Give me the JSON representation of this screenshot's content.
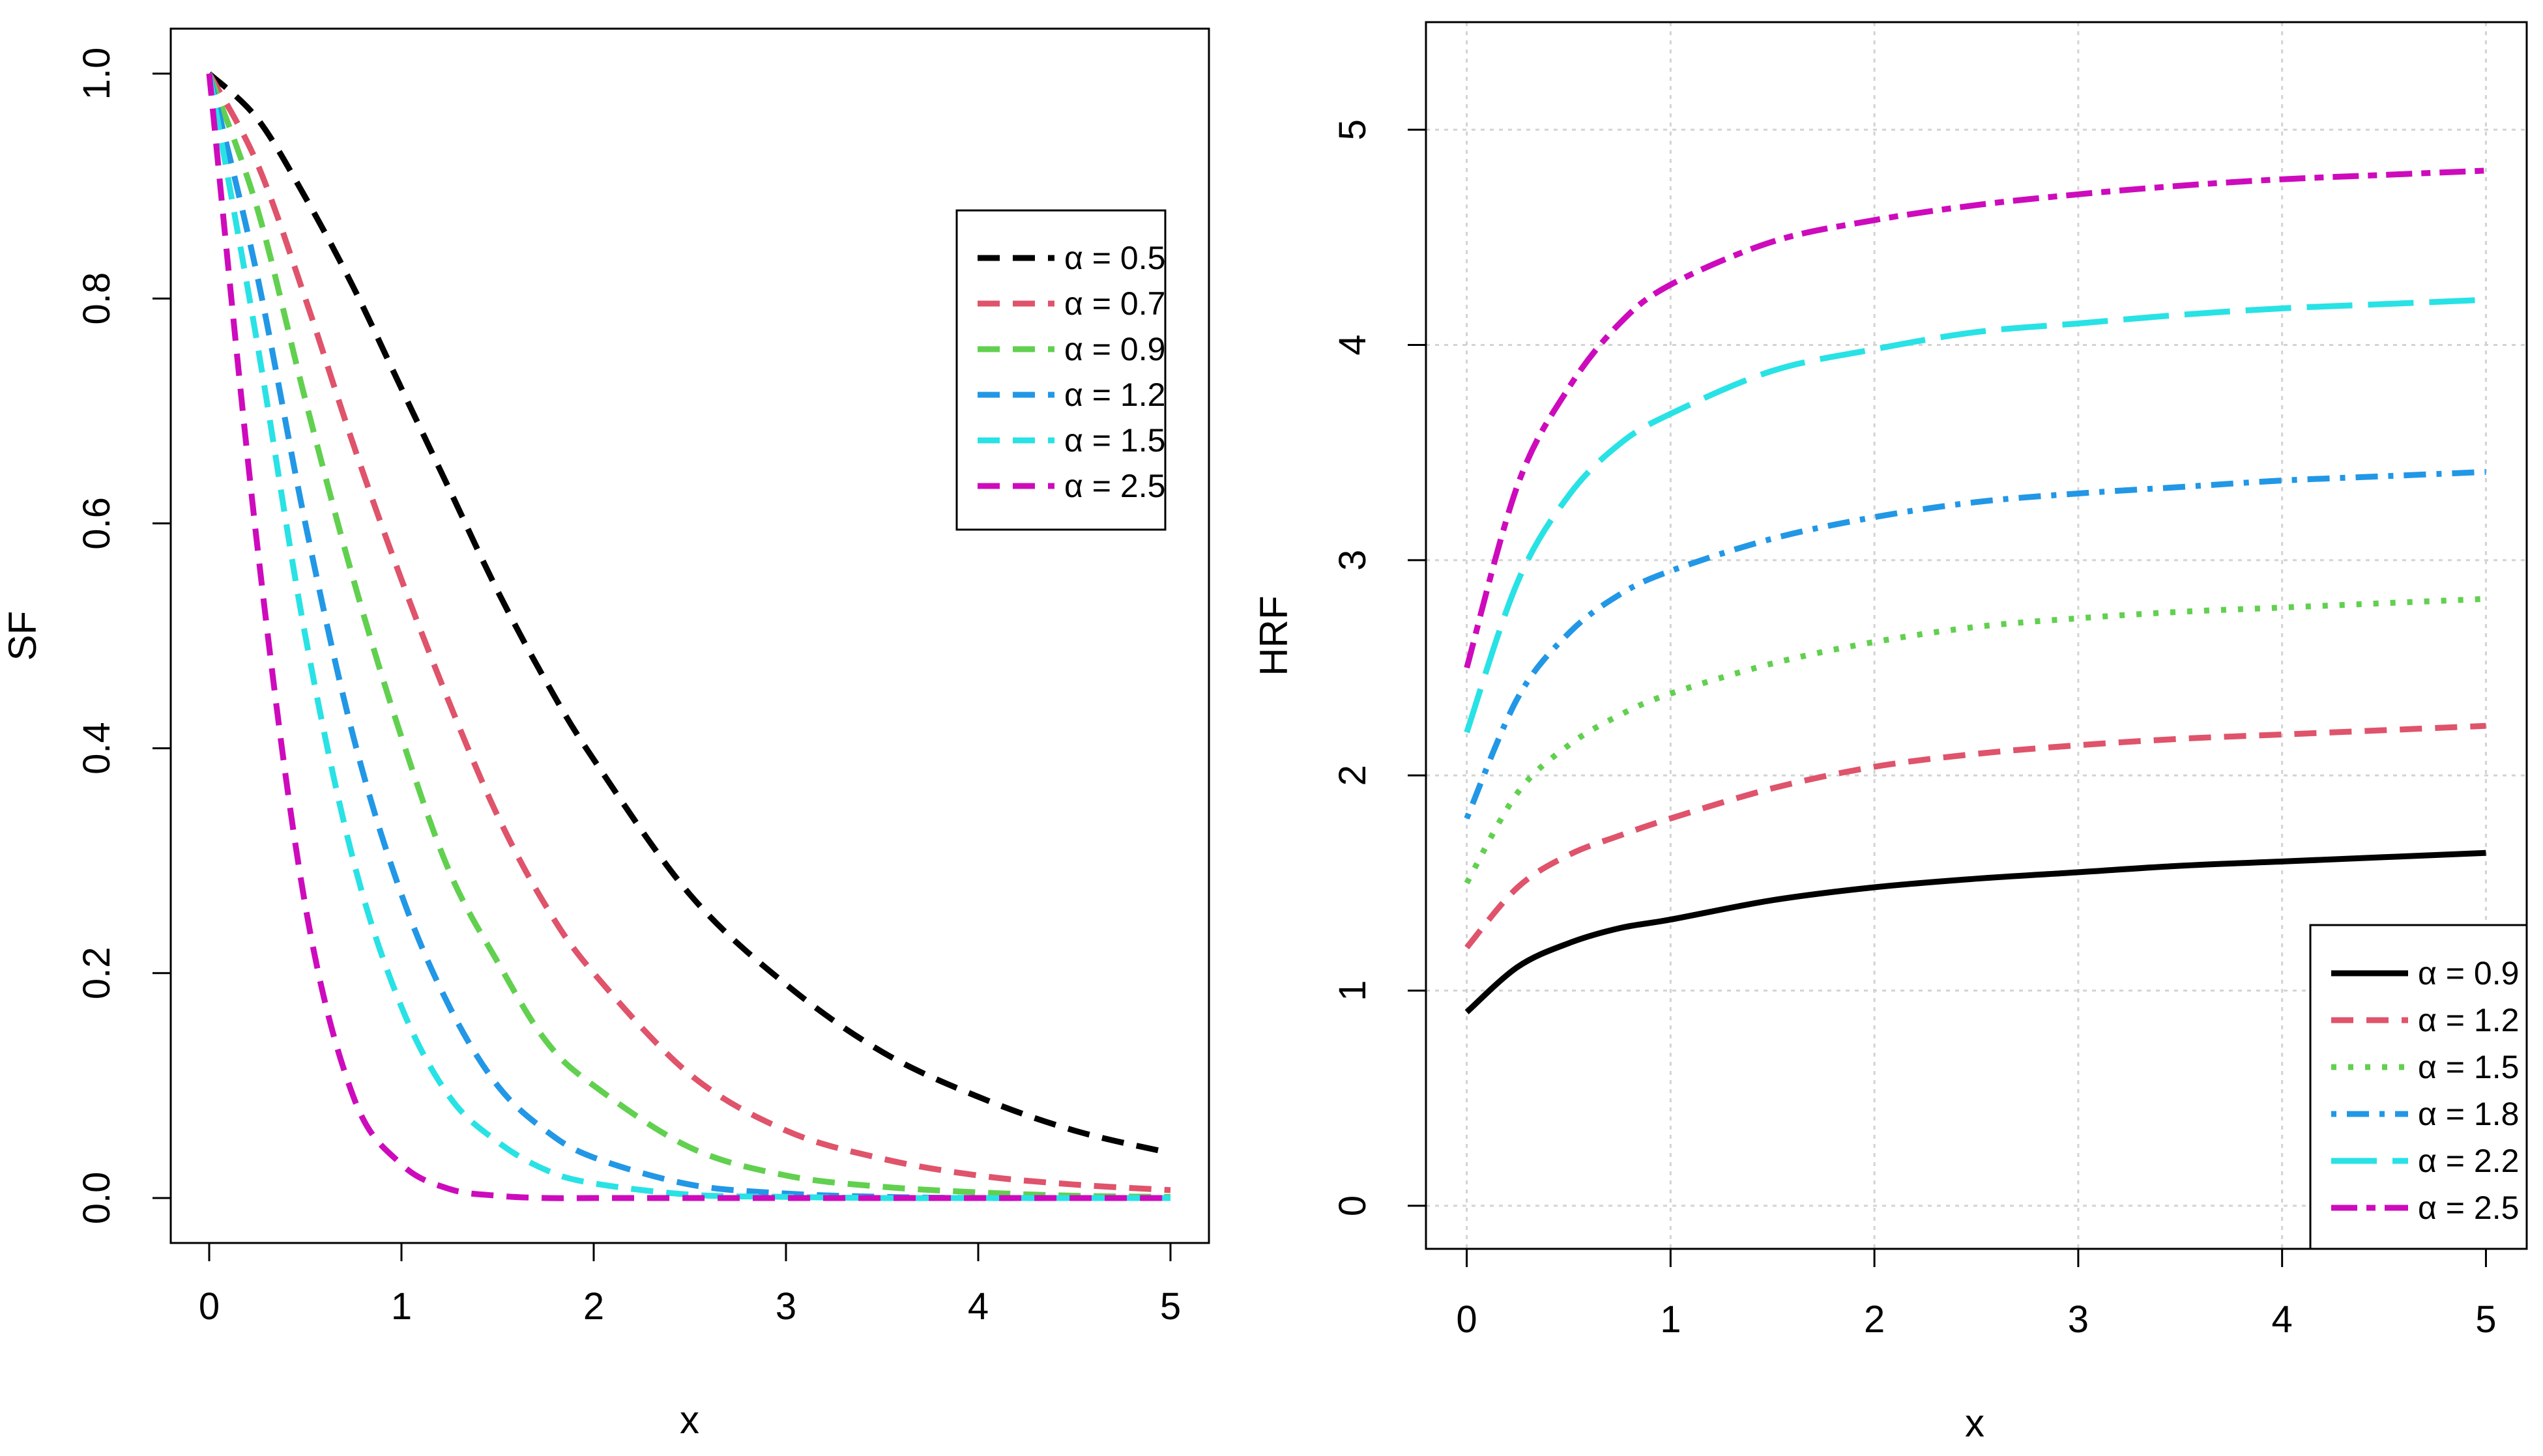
{
  "chart_data": [
    {
      "type": "line",
      "title": "",
      "xlabel": "x",
      "ylabel": "SF",
      "xlim": [
        0,
        5
      ],
      "ylim": [
        0,
        1
      ],
      "xticks": [
        "0",
        "1",
        "2",
        "3",
        "4",
        "5"
      ],
      "yticks": [
        "0.0",
        "0.2",
        "0.4",
        "0.6",
        "0.8",
        "1.0"
      ],
      "grid": false,
      "legend_position": "top-right",
      "x": [
        0,
        0.25,
        0.5,
        0.75,
        1,
        1.25,
        1.5,
        1.75,
        2,
        2.5,
        3,
        3.5,
        4,
        4.5,
        5
      ],
      "series": [
        {
          "name": "α = 0.5",
          "color": "#000000",
          "line": "dashed",
          "values": [
            1.0,
            0.96,
            0.89,
            0.81,
            0.72,
            0.63,
            0.54,
            0.46,
            0.39,
            0.27,
            0.19,
            0.13,
            0.09,
            0.06,
            0.04
          ]
        },
        {
          "name": "α = 0.7",
          "color": "#DF536B",
          "line": "dashed",
          "values": [
            1.0,
            0.92,
            0.8,
            0.67,
            0.55,
            0.44,
            0.34,
            0.26,
            0.2,
            0.11,
            0.06,
            0.035,
            0.02,
            0.012,
            0.007
          ]
        },
        {
          "name": "α = 0.9",
          "color": "#61D04F",
          "line": "dashed",
          "values": [
            1.0,
            0.88,
            0.71,
            0.55,
            0.41,
            0.29,
            0.21,
            0.14,
            0.1,
            0.045,
            0.02,
            0.01,
            0.005,
            0.002,
            0.001
          ]
        },
        {
          "name": "α = 1.2",
          "color": "#2297E6",
          "line": "dashed",
          "values": [
            1.0,
            0.82,
            0.6,
            0.41,
            0.27,
            0.17,
            0.1,
            0.06,
            0.036,
            0.012,
            0.004,
            0.001,
            0.0,
            0.0,
            0.0
          ]
        },
        {
          "name": "α = 1.5",
          "color": "#28E2E5",
          "line": "dashed",
          "values": [
            1.0,
            0.76,
            0.5,
            0.3,
            0.17,
            0.09,
            0.05,
            0.025,
            0.013,
            0.003,
            0.001,
            0.0,
            0.0,
            0.0,
            0.0
          ]
        },
        {
          "name": "α = 2.5",
          "color": "#CD0BBC",
          "line": "dashed",
          "values": [
            1.0,
            0.58,
            0.26,
            0.09,
            0.03,
            0.008,
            0.002,
            0.0,
            0.0,
            0.0,
            0.0,
            0.0,
            0.0,
            0.0,
            0.0
          ]
        }
      ]
    },
    {
      "type": "line",
      "title": "",
      "xlabel": "x",
      "ylabel": "HRF",
      "xlim": [
        0,
        5
      ],
      "ylim": [
        -0.2,
        5.5
      ],
      "xticks": [
        "0",
        "1",
        "2",
        "3",
        "4",
        "5"
      ],
      "yticks": [
        "0",
        "1",
        "2",
        "3",
        "4",
        "5"
      ],
      "grid": true,
      "legend_position": "bottom-right",
      "x": [
        0,
        0.25,
        0.5,
        0.75,
        1,
        1.5,
        2,
        2.5,
        3,
        3.5,
        4,
        4.5,
        5
      ],
      "series": [
        {
          "name": "α = 0.9",
          "color": "#000000",
          "line": "solid",
          "values": [
            0.9,
            1.11,
            1.22,
            1.29,
            1.33,
            1.42,
            1.48,
            1.52,
            1.55,
            1.58,
            1.6,
            1.62,
            1.64
          ]
        },
        {
          "name": "α = 1.2",
          "color": "#DF536B",
          "line": "dashed",
          "values": [
            1.2,
            1.48,
            1.63,
            1.72,
            1.8,
            1.94,
            2.04,
            2.1,
            2.14,
            2.17,
            2.19,
            2.21,
            2.23
          ]
        },
        {
          "name": "α = 1.5",
          "color": "#61D04F",
          "line": "dotted",
          "values": [
            1.5,
            1.92,
            2.14,
            2.28,
            2.38,
            2.52,
            2.62,
            2.69,
            2.73,
            2.76,
            2.78,
            2.8,
            2.82
          ]
        },
        {
          "name": "α = 1.8",
          "color": "#2297E6",
          "line": "dotdash",
          "values": [
            1.8,
            2.36,
            2.66,
            2.84,
            2.95,
            3.1,
            3.2,
            3.27,
            3.31,
            3.34,
            3.37,
            3.39,
            3.41
          ]
        },
        {
          "name": "α = 2.2",
          "color": "#28E2E5",
          "line": "longdash",
          "values": [
            2.2,
            2.9,
            3.3,
            3.54,
            3.68,
            3.88,
            3.98,
            4.06,
            4.1,
            4.14,
            4.17,
            4.19,
            4.21
          ]
        },
        {
          "name": "α = 2.5",
          "color": "#CD0BBC",
          "line": "twodash",
          "values": [
            2.5,
            3.35,
            3.8,
            4.1,
            4.28,
            4.48,
            4.58,
            4.65,
            4.7,
            4.74,
            4.77,
            4.79,
            4.81
          ]
        }
      ]
    }
  ]
}
